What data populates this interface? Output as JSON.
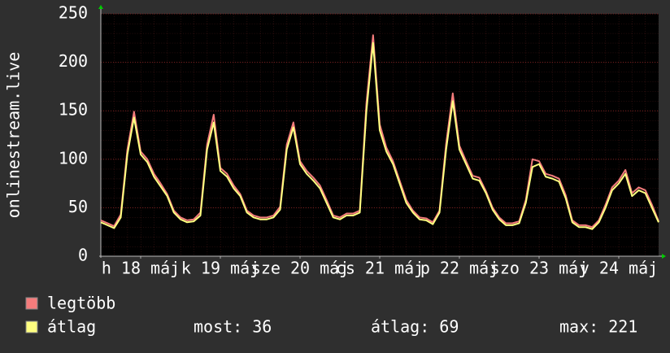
{
  "chart_data": {
    "type": "line",
    "ylabel": "onlinestream.live",
    "x": [
      0,
      2,
      4,
      6,
      8,
      10,
      12,
      14,
      16,
      18,
      20,
      22,
      24,
      26,
      28,
      30,
      32,
      34,
      36,
      38,
      40,
      42,
      44,
      46,
      48,
      50,
      52,
      54,
      56,
      58,
      60,
      62,
      64,
      66,
      68,
      70,
      72,
      74,
      76,
      78,
      80,
      82,
      84,
      86,
      88,
      90,
      92,
      94,
      96,
      98,
      100,
      102,
      104,
      106,
      108,
      110,
      112,
      114,
      116,
      118,
      120,
      122,
      124,
      126,
      128,
      130,
      132,
      134,
      136,
      138,
      140,
      142,
      144,
      146,
      148,
      150,
      152,
      154,
      156,
      158,
      160,
      162,
      164,
      166,
      168
    ],
    "xlim": [
      0,
      168
    ],
    "xticks": [
      {
        "value": 12,
        "label": "h 18 máj"
      },
      {
        "value": 36,
        "label": "k 19 máj"
      },
      {
        "value": 60,
        "label": "sze 20 máj"
      },
      {
        "value": 84,
        "label": "cs 21 máj"
      },
      {
        "value": 108,
        "label": "p 22 máj"
      },
      {
        "value": 132,
        "label": "szo 23 máj"
      },
      {
        "value": 156,
        "label": "v 24 máj"
      }
    ],
    "ylim": [
      0,
      250
    ],
    "yticks": [
      0,
      50,
      100,
      150,
      200,
      250
    ],
    "grid": true,
    "series": [
      {
        "name": "legtöbb",
        "color": "#f47c7c",
        "values": [
          37,
          34,
          31,
          43,
          110,
          149,
          108,
          100,
          85,
          75,
          64,
          47,
          40,
          37,
          38,
          45,
          115,
          146,
          91,
          85,
          73,
          64,
          47,
          42,
          40,
          40,
          42,
          51,
          115,
          138,
          98,
          88,
          81,
          73,
          58,
          42,
          40,
          44,
          44,
          47,
          158,
          228,
          136,
          112,
          98,
          78,
          58,
          47,
          40,
          39,
          35,
          47,
          116,
          168,
          114,
          98,
          83,
          81,
          67,
          50,
          40,
          34,
          34,
          36,
          58,
          100,
          98,
          85,
          83,
          80,
          63,
          37,
          32,
          32,
          30,
          37,
          53,
          71,
          78,
          89,
          65,
          71,
          68,
          53,
          36
        ]
      },
      {
        "name": "átlag",
        "color": "#ffff80",
        "values": [
          35,
          32,
          29,
          40,
          105,
          143,
          105,
          97,
          82,
          72,
          62,
          45,
          38,
          35,
          36,
          42,
          110,
          138,
          88,
          82,
          70,
          62,
          45,
          40,
          38,
          38,
          40,
          48,
          110,
          133,
          95,
          85,
          78,
          70,
          55,
          40,
          38,
          42,
          42,
          45,
          150,
          220,
          130,
          108,
          95,
          75,
          55,
          45,
          38,
          37,
          33,
          45,
          110,
          160,
          110,
          95,
          80,
          78,
          65,
          48,
          38,
          32,
          32,
          34,
          55,
          92,
          95,
          82,
          80,
          77,
          60,
          35,
          30,
          30,
          28,
          35,
          50,
          68,
          75,
          85,
          62,
          68,
          65,
          50,
          35
        ]
      }
    ],
    "stats": [
      "most: 36",
      "átlag: 69",
      "max: 221"
    ]
  }
}
